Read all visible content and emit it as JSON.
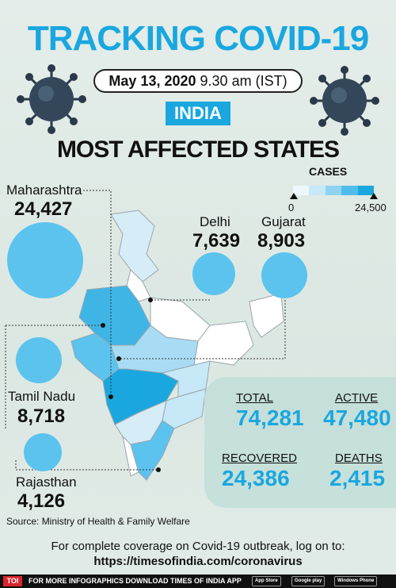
{
  "header": {
    "title": "TRACKING COVID-19",
    "date": "May 13, 2020",
    "time": "9.30 am (IST)",
    "country": "INDIA",
    "subtitle": "MOST AFFECTED STATES"
  },
  "legend": {
    "title": "CASES",
    "min": "0",
    "max": "24,500",
    "colors": [
      "#eef7fc",
      "#c6e8f7",
      "#8fd3f1",
      "#4fbde9",
      "#1aa7df"
    ]
  },
  "states": [
    {
      "name": "Maharashtra",
      "cases": "24,427",
      "value": 24427
    },
    {
      "name": "Delhi",
      "cases": "7,639",
      "value": 7639
    },
    {
      "name": "Gujarat",
      "cases": "8,903",
      "value": 8903
    },
    {
      "name": "Tamil Nadu",
      "cases": "8,718",
      "value": 8718
    },
    {
      "name": "Rajasthan",
      "cases": "4,126",
      "value": 4126
    }
  ],
  "stats": {
    "total_label": "TOTAL",
    "total": "74,281",
    "active_label": "ACTIVE",
    "active": "47,480",
    "recovered_label": "RECOVERED",
    "recovered": "24,386",
    "deaths_label": "DEATHS",
    "deaths": "2,415"
  },
  "source": "Source: Ministry of Health & Family Welfare",
  "footer": {
    "line1": "For complete coverage on Covid-19 outbreak, log on to:",
    "url": "https://timesofindia.com/coronavirus",
    "bar_logo": "TOI",
    "bar_text": "FOR MORE INFOGRAPHICS DOWNLOAD TIMES OF INDIA APP",
    "store1": "App Store",
    "store2": "Google play",
    "store3": "Windows Phone"
  },
  "colors": {
    "accent": "#1aa7df",
    "bubble": "#5bc3ee"
  }
}
